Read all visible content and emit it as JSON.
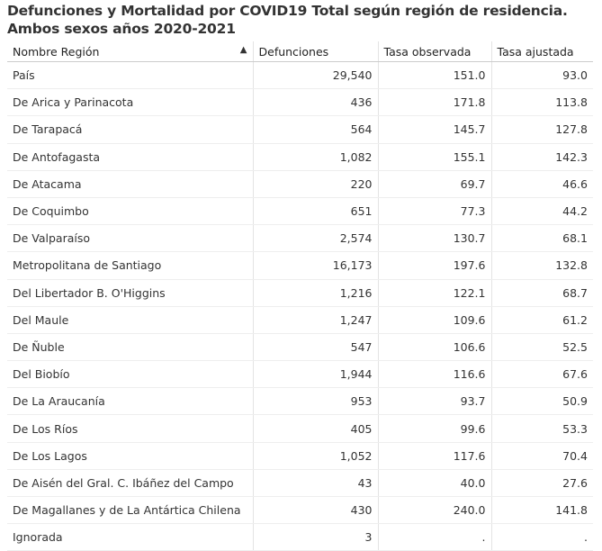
{
  "header": {
    "title": "Defunciones y Mortalidad por COVID19 Total según región de residencia. Ambos sexos años 2020-2021"
  },
  "table": {
    "columns": [
      "Nombre Región",
      "Defunciones",
      "Tasa observada",
      "Tasa ajustada"
    ],
    "rows": [
      [
        "País",
        "29,540",
        "151.0",
        "93.0"
      ],
      [
        "De Arica y Parinacota",
        "436",
        "171.8",
        "113.8"
      ],
      [
        "De Tarapacá",
        "564",
        "145.7",
        "127.8"
      ],
      [
        "De Antofagasta",
        "1,082",
        "155.1",
        "142.3"
      ],
      [
        "De Atacama",
        "220",
        "69.7",
        "46.6"
      ],
      [
        "De Coquimbo",
        "651",
        "77.3",
        "44.2"
      ],
      [
        "De Valparaíso",
        "2,574",
        "130.7",
        "68.1"
      ],
      [
        "Metropolitana de Santiago",
        "16,173",
        "197.6",
        "132.8"
      ],
      [
        "Del Libertador B. O'Higgins",
        "1,216",
        "122.1",
        "68.7"
      ],
      [
        "Del Maule",
        "1,247",
        "109.6",
        "61.2"
      ],
      [
        "De Ñuble",
        "547",
        "106.6",
        "52.5"
      ],
      [
        "Del Biobío",
        "1,944",
        "116.6",
        "67.6"
      ],
      [
        "De La Araucanía",
        "953",
        "93.7",
        "50.9"
      ],
      [
        "De Los Ríos",
        "405",
        "99.6",
        "53.3"
      ],
      [
        "De Los Lagos",
        "1,052",
        "117.6",
        "70.4"
      ],
      [
        "De Aisén del Gral. C. Ibáñez del Campo",
        "43",
        "40.0",
        "27.6"
      ],
      [
        "De Magallanes y de La Antártica Chilena",
        "430",
        "240.0",
        "141.8"
      ],
      [
        "Ignorada",
        "3",
        ".",
        "."
      ]
    ]
  }
}
